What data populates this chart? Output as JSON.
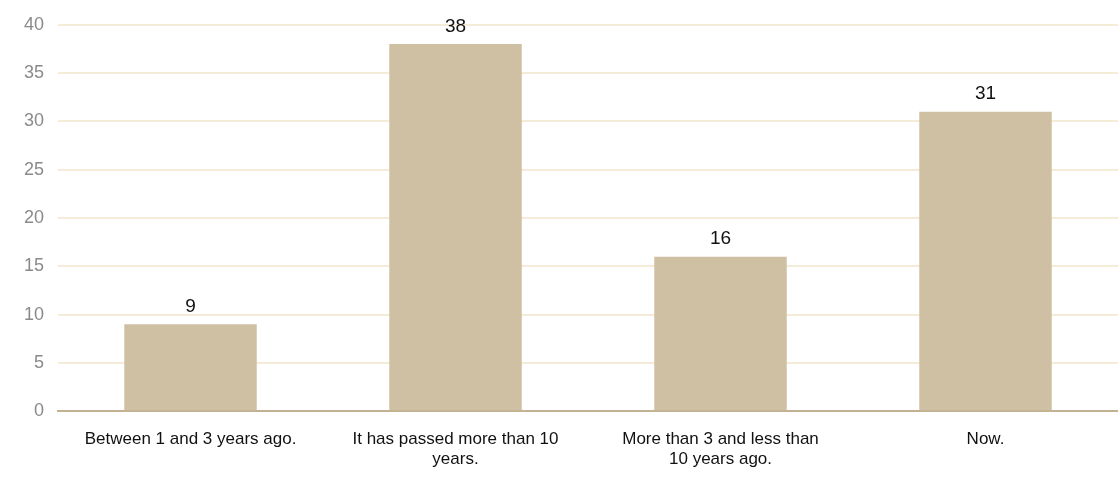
{
  "chart_data": {
    "type": "bar",
    "categories": [
      "Between 1 and 3 years ago.",
      "It has passed more than 10 years.",
      "More than 3 and less than 10 years ago.",
      "Now."
    ],
    "values": [
      9,
      38,
      16,
      31
    ],
    "color": "#cfc0a3",
    "ylim": [
      0,
      40
    ],
    "yticks": [
      0,
      5,
      10,
      15,
      20,
      25,
      30,
      35,
      40
    ],
    "grid": "y",
    "data_labels": true,
    "legend": false
  }
}
